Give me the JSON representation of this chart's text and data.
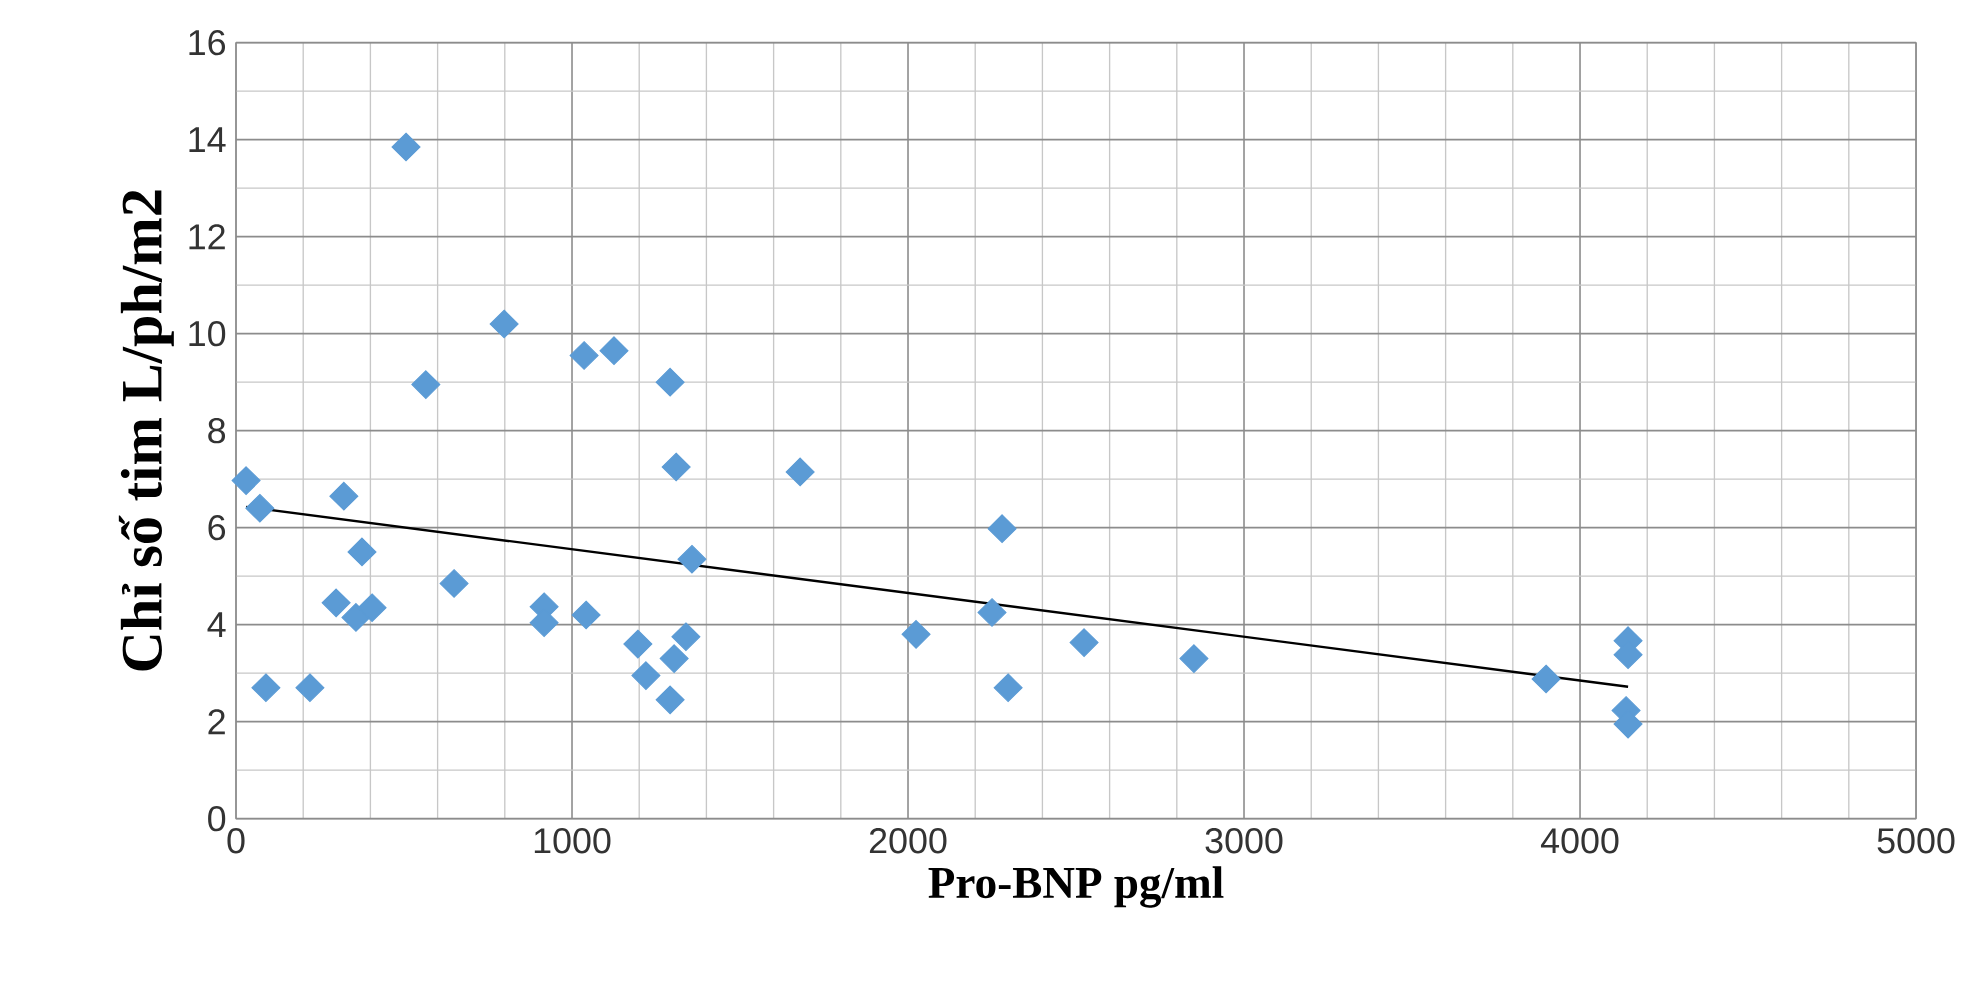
{
  "chart_data": {
    "type": "scatter",
    "xlabel": "Pro-BNP pg/ml",
    "ylabel": "Chỉ số tim L/ph/m2",
    "xlim": [
      0,
      5000
    ],
    "xticks": [
      0,
      1000,
      2000,
      3000,
      4000,
      5000
    ],
    "ylim": [
      0,
      16
    ],
    "yticks": [
      0,
      2,
      4,
      6,
      8,
      10,
      12,
      14,
      16
    ],
    "grid": true,
    "series": [
      {
        "color": "#5b9bd5",
        "marker": "diamond",
        "x": [
          30,
          71,
          89,
          220,
          298,
          321,
          357,
          375,
          405,
          506,
          565,
          649,
          798,
          1036,
          1125,
          1292,
          1310,
          1357,
          1042,
          917,
          917,
          1196,
          1220,
          1292,
          1304,
          1339,
          1679,
          2024,
          2250,
          2280,
          2298,
          2524,
          2851,
          3899,
          4143,
          4143,
          4137,
          4143
        ],
        "values": [
          6.97,
          6.4,
          2.7,
          2.7,
          4.45,
          6.65,
          4.15,
          5.5,
          4.35,
          13.85,
          8.95,
          4.85,
          10.2,
          9.55,
          9.65,
          9.0,
          7.25,
          5.35,
          4.2,
          4.37,
          4.04,
          3.6,
          2.95,
          2.45,
          3.3,
          3.75,
          7.15,
          3.8,
          4.25,
          5.98,
          2.7,
          3.63,
          3.3,
          2.88,
          3.67,
          3.38,
          2.23,
          1.95
        ]
      },
      {
        "type": "line",
        "color": "#000000",
        "marker": "none",
        "line_style": "solid",
        "x": [
          30,
          4143
        ],
        "values": [
          6.43,
          2.72
        ]
      }
    ]
  }
}
